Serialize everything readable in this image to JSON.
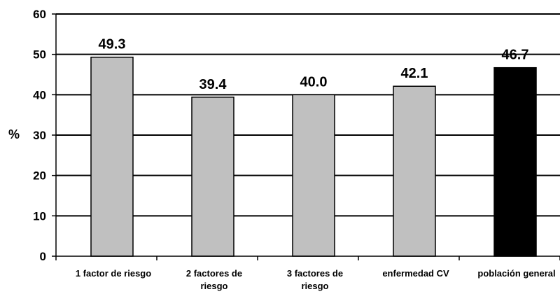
{
  "chart_data": {
    "type": "bar",
    "title": "",
    "xlabel": "",
    "ylabel": "%",
    "ylim": [
      0,
      60
    ],
    "yticks": [
      0,
      10,
      20,
      30,
      40,
      50,
      60
    ],
    "grid": true,
    "categories": [
      [
        "1 factor de riesgo"
      ],
      [
        "2 factores de",
        "riesgo"
      ],
      [
        "3 factores de",
        "riesgo"
      ],
      [
        "enfermedad CV"
      ],
      [
        "población general"
      ]
    ],
    "values": [
      49.3,
      39.4,
      40.0,
      42.1,
      46.7
    ],
    "data_labels": [
      "49.3",
      "39.4",
      "40.0",
      "42.1",
      "46.7"
    ],
    "bar_colors": [
      "#c0c0c0",
      "#c0c0c0",
      "#c0c0c0",
      "#c0c0c0",
      "#000000"
    ]
  }
}
